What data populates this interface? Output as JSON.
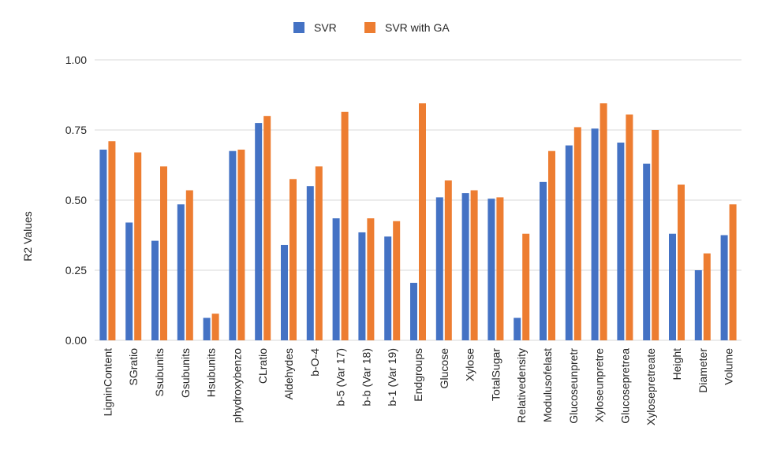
{
  "chart_data": {
    "type": "bar",
    "ylabel": "R2 Values",
    "xlabel": "",
    "ylim": [
      0,
      1
    ],
    "yticks": [
      "0.00",
      "0.25",
      "0.50",
      "0.75",
      "1.00"
    ],
    "ytick_values": [
      0,
      0.25,
      0.5,
      0.75,
      1.0
    ],
    "grid": true,
    "legend_position": "top-center",
    "categories": [
      "LigninContent",
      "SGratio",
      "Ssubunits",
      "Gsubunits",
      "Hsubunits",
      "phydroxybenzo",
      "CLratio",
      "Aldehydes",
      "b-O-4",
      "b-5 (Var 17)",
      "b-b (Var 18)",
      "b-1 (Var 19)",
      "Endgroups",
      "Glucose",
      "Xylose",
      "TotalSugar",
      "Relativedensity",
      "Modulusofelast",
      "Glucoseunpretr",
      "Xyloseunpretre",
      "Glucosepretrea",
      "Xylosepretreate",
      "Height",
      "Diameter",
      "Volume"
    ],
    "series": [
      {
        "name": "SVR",
        "color": "#4472c4",
        "values": [
          0.68,
          0.42,
          0.355,
          0.485,
          0.08,
          0.675,
          0.775,
          0.34,
          0.55,
          0.435,
          0.385,
          0.37,
          0.205,
          0.51,
          0.525,
          0.505,
          0.08,
          0.565,
          0.695,
          0.755,
          0.705,
          0.63,
          0.38,
          0.25,
          0.375
        ]
      },
      {
        "name": "SVR with GA",
        "color": "#ed7d31",
        "values": [
          0.71,
          0.67,
          0.62,
          0.535,
          0.095,
          0.68,
          0.8,
          0.575,
          0.62,
          0.815,
          0.435,
          0.425,
          0.845,
          0.57,
          0.535,
          0.51,
          0.38,
          0.675,
          0.76,
          0.845,
          0.805,
          0.75,
          0.555,
          0.31,
          0.485
        ]
      }
    ]
  }
}
